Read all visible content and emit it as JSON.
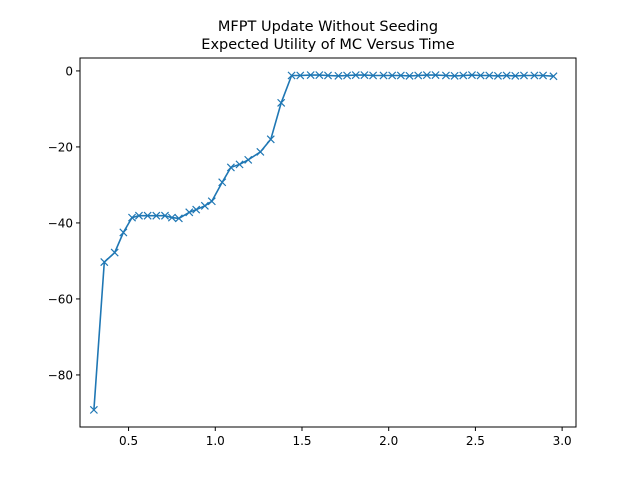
{
  "chart_data": {
    "type": "line",
    "title_line1": "MFPT Update Without Seeding",
    "title_line2": "Expected Utility of MC Versus Time",
    "xlabel": "",
    "ylabel": "",
    "xlim": [
      0.22,
      3.08
    ],
    "ylim": [
      -93.7,
      3.4
    ],
    "x_ticks": [
      0.5,
      1.0,
      1.5,
      2.0,
      2.5,
      3.0
    ],
    "x_tick_labels": [
      "0.5",
      "1.0",
      "1.5",
      "2.0",
      "2.5",
      "3.0"
    ],
    "y_ticks": [
      0,
      -20,
      -40,
      -60,
      -80
    ],
    "y_tick_labels": [
      "0",
      "−20",
      "−40",
      "−60",
      "−80"
    ],
    "grid": false,
    "legend": "none",
    "series": [
      {
        "color": "#1f77b4",
        "marker": "x",
        "x": [
          0.3,
          0.36,
          0.42,
          0.47,
          0.52,
          0.56,
          0.61,
          0.66,
          0.71,
          0.75,
          0.79,
          0.85,
          0.89,
          0.94,
          0.98,
          1.04,
          1.09,
          1.14,
          1.19,
          1.26,
          1.32,
          1.38,
          1.44,
          1.49,
          1.55,
          1.6,
          1.65,
          1.71,
          1.76,
          1.81,
          1.86,
          1.91,
          1.97,
          2.02,
          2.07,
          2.12,
          2.17,
          2.22,
          2.27,
          2.33,
          2.38,
          2.43,
          2.48,
          2.53,
          2.58,
          2.63,
          2.68,
          2.73,
          2.78,
          2.84,
          2.89,
          2.95
        ],
        "y": [
          -89.2,
          -50.3,
          -47.8,
          -42.5,
          -38.6,
          -38.1,
          -38.1,
          -38.1,
          -38.1,
          -38.6,
          -38.8,
          -37.2,
          -36.5,
          -35.5,
          -34.3,
          -29.3,
          -25.4,
          -24.6,
          -23.4,
          -21.3,
          -18.0,
          -8.4,
          -1.2,
          -1.2,
          -1.1,
          -1.1,
          -1.2,
          -1.3,
          -1.2,
          -1.1,
          -1.1,
          -1.2,
          -1.2,
          -1.2,
          -1.2,
          -1.3,
          -1.2,
          -1.1,
          -1.1,
          -1.2,
          -1.3,
          -1.2,
          -1.1,
          -1.2,
          -1.2,
          -1.3,
          -1.2,
          -1.3,
          -1.2,
          -1.2,
          -1.2,
          -1.4
        ]
      }
    ]
  }
}
